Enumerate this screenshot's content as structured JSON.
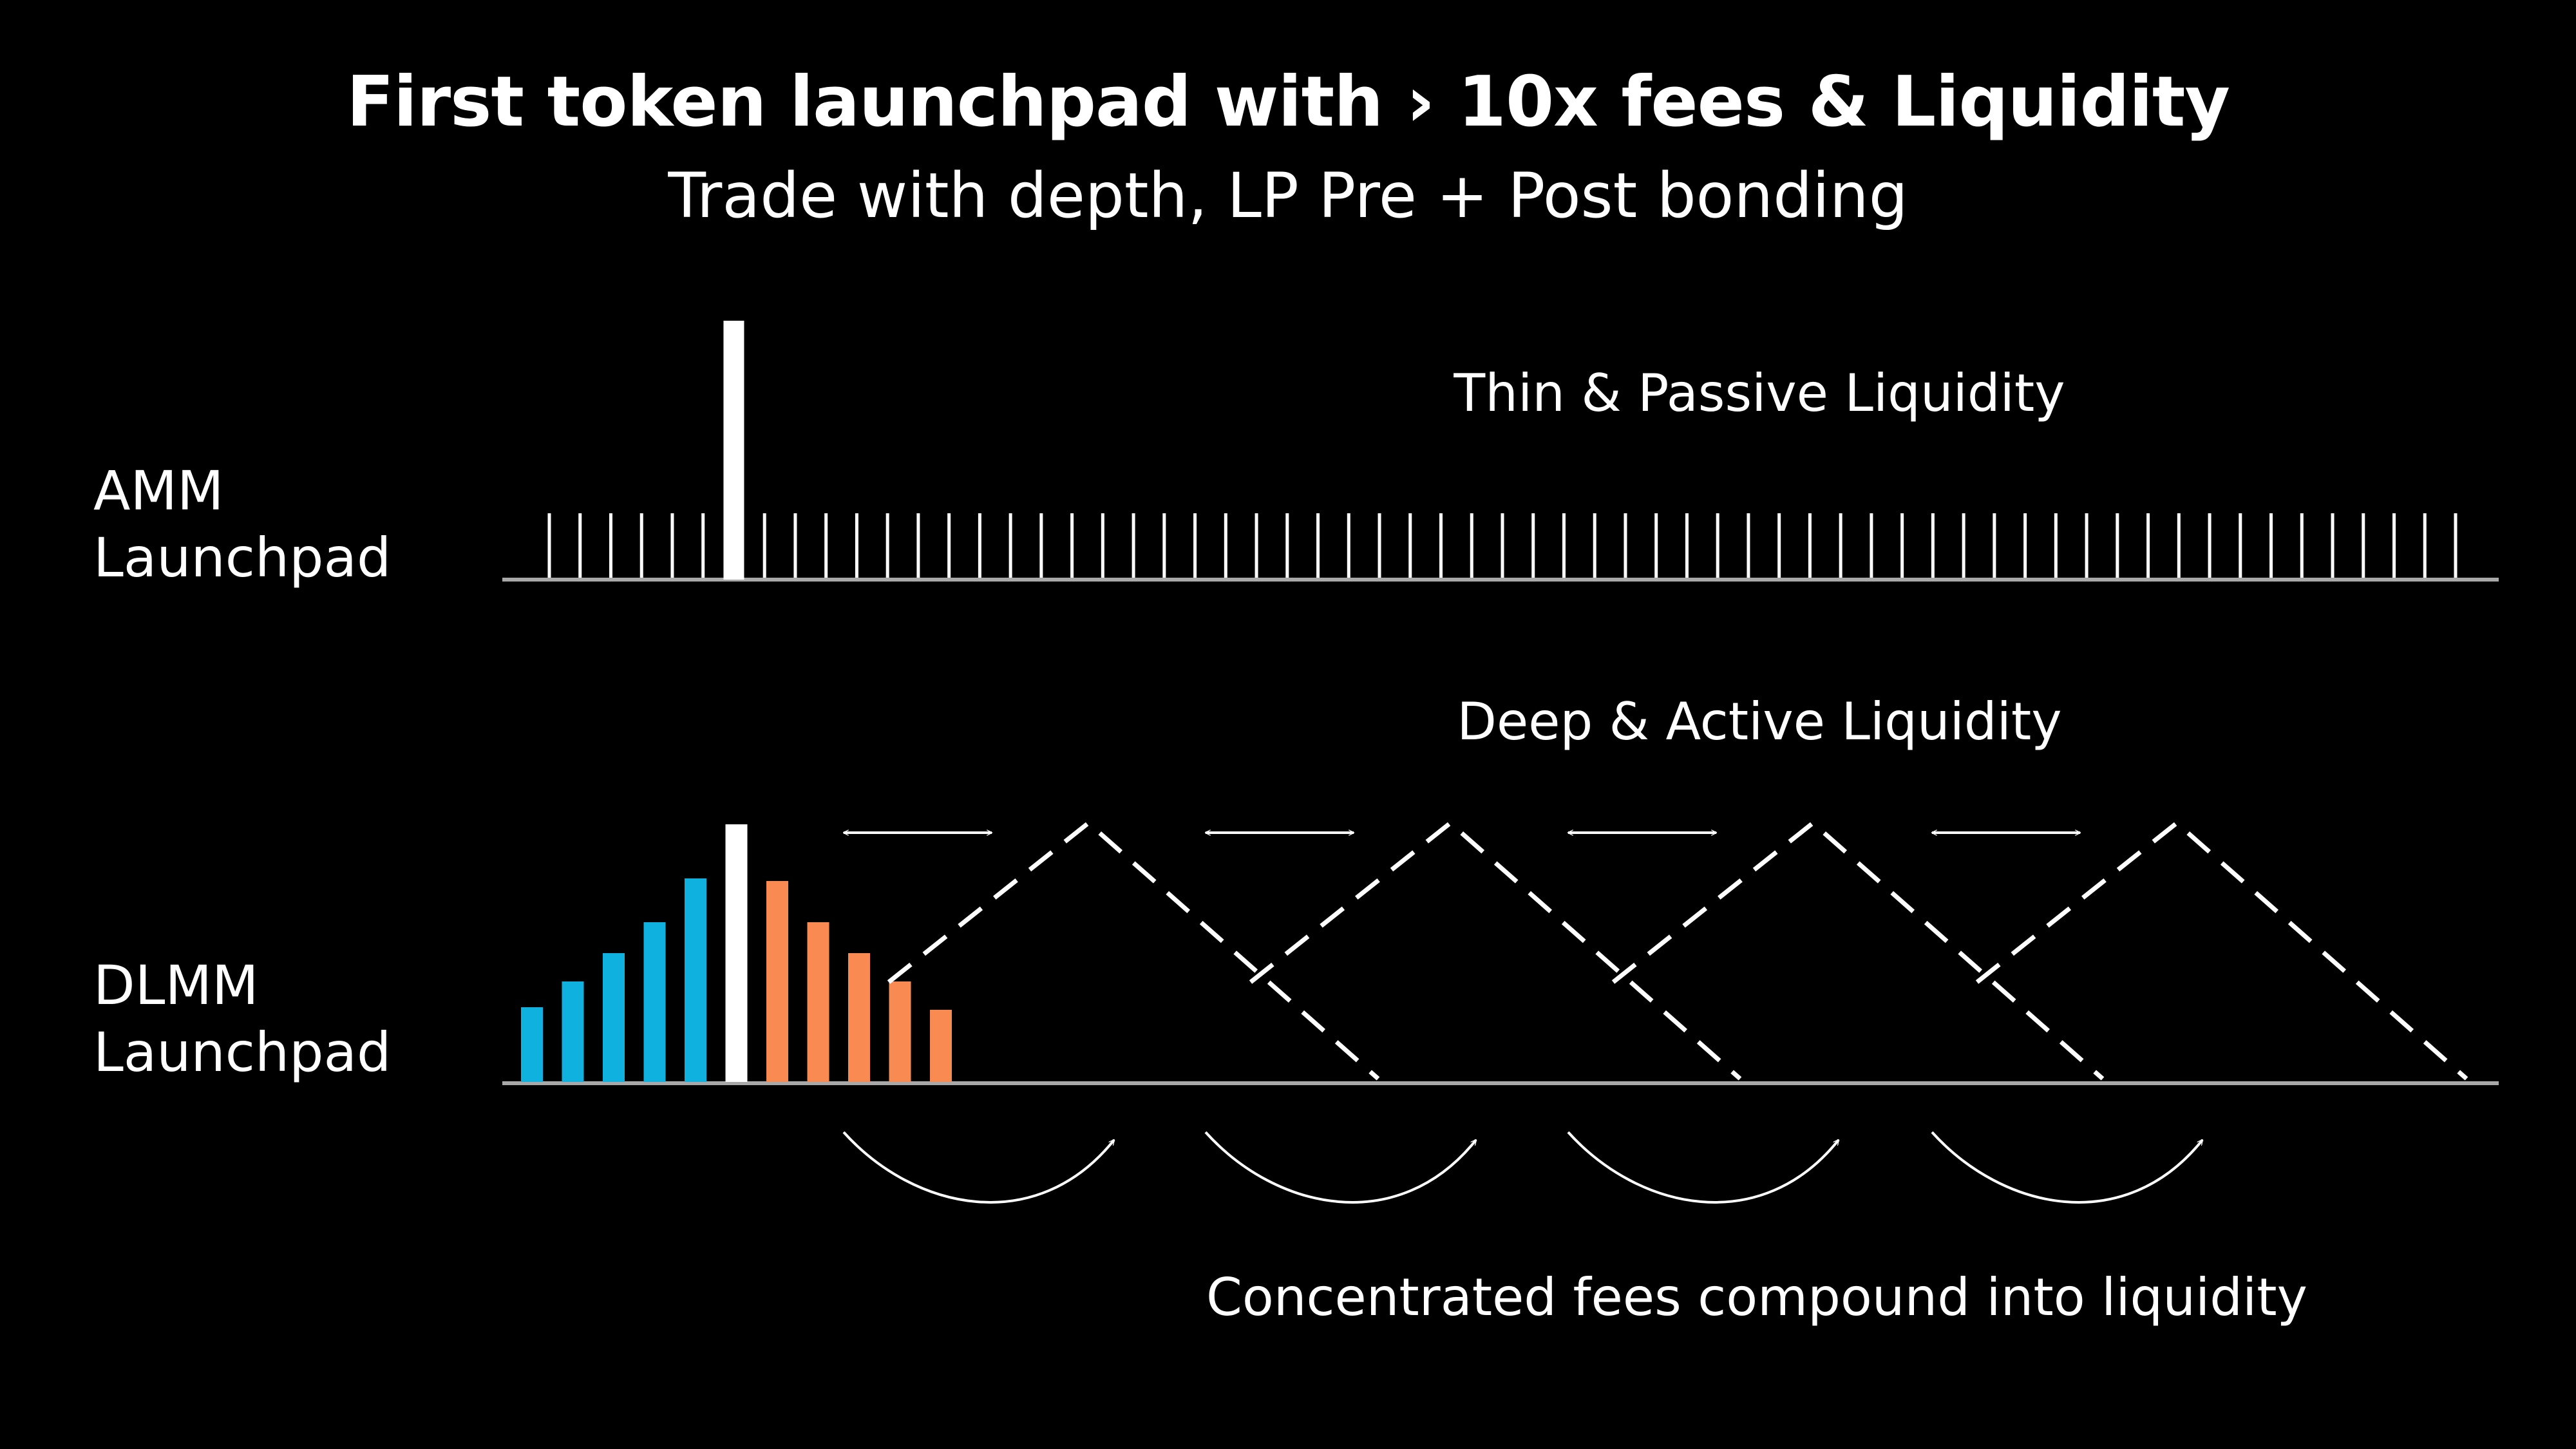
{
  "header": {
    "title": "First token launchpad with › 10x fees & Liquidity",
    "subtitle": "Trade with depth, LP Pre + Post bonding"
  },
  "amm": {
    "label_line1": "AMM",
    "label_line2": "Launchpad",
    "caption": "Thin & Passive Liquidity",
    "tick_count": 63,
    "active_tick_index": 6
  },
  "dlmm": {
    "label_line1": "DLMM",
    "label_line2": "Launchpad",
    "caption": "Deep & Active Liquidity",
    "bins": [
      {
        "side": "bid",
        "height": 0.29
      },
      {
        "side": "bid",
        "height": 0.39
      },
      {
        "side": "bid",
        "height": 0.5
      },
      {
        "side": "bid",
        "height": 0.62
      },
      {
        "side": "bid",
        "height": 0.79
      },
      {
        "side": "active",
        "height": 1.0
      },
      {
        "side": "ask",
        "height": 0.78
      },
      {
        "side": "ask",
        "height": 0.62
      },
      {
        "side": "ask",
        "height": 0.5
      },
      {
        "side": "ask",
        "height": 0.39
      },
      {
        "side": "ask",
        "height": 0.28
      }
    ],
    "shift_count": 4
  },
  "footer": {
    "caption": "Concentrated fees compound into liquidity"
  },
  "colors": {
    "background": "#000000",
    "text": "#ffffff",
    "bid_bar": "#0fb1df",
    "ask_bar": "#f98b52",
    "active_bar": "#ffffff",
    "baseline": "#a8a8a8"
  }
}
